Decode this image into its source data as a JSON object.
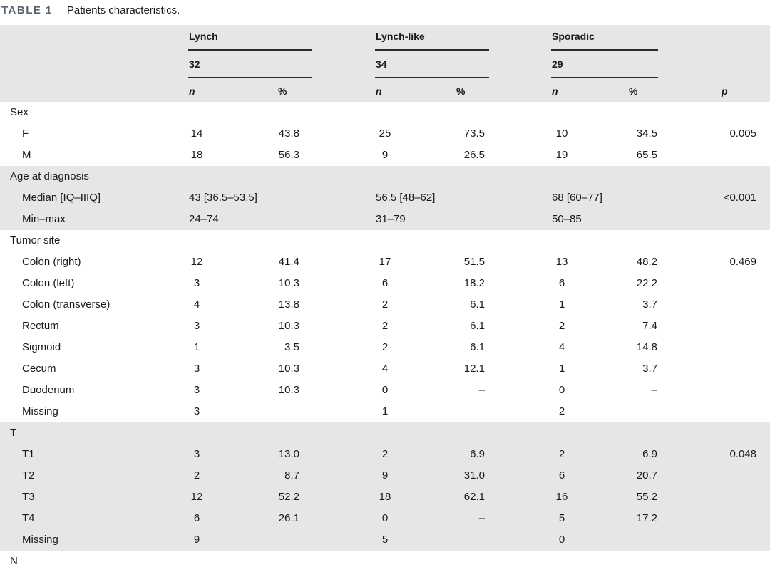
{
  "caption": {
    "label": "TABLE 1",
    "text": "Patients characteristics."
  },
  "header": {
    "groups": [
      {
        "name": "Lynch",
        "count": "32"
      },
      {
        "name": "Lynch-like",
        "count": "34"
      },
      {
        "name": "Sporadic",
        "count": "29"
      }
    ],
    "n_label": "n",
    "pct_label": "%",
    "p_label": "p"
  },
  "rows": [
    {
      "label": "Sex",
      "sub": false,
      "shade": false
    },
    {
      "label": "F",
      "sub": true,
      "shade": false,
      "n1": "14",
      "p1": "43.8",
      "n2": "25",
      "p2": "73.5",
      "n3": "10",
      "p3": "34.5",
      "pv": "0.005"
    },
    {
      "label": "M",
      "sub": true,
      "shade": false,
      "n1": "18",
      "p1": "56.3",
      "n2": "9",
      "p2": "26.5",
      "n3": "19",
      "p3": "65.5",
      "pv": ""
    },
    {
      "label": "Age at diagnosis",
      "sub": false,
      "shade": true
    },
    {
      "label": "Median [IQ–IIIQ]",
      "sub": true,
      "shade": true,
      "s1": "43 [36.5–53.5]",
      "s2": "56.5 [48–62]",
      "s3": "68 [60–77]",
      "pv": "<0.001"
    },
    {
      "label": "Min–max",
      "sub": true,
      "shade": true,
      "s1": "24–74",
      "s2": "31–79",
      "s3": "50–85",
      "pv": ""
    },
    {
      "label": "Tumor site",
      "sub": false,
      "shade": false
    },
    {
      "label": "Colon (right)",
      "sub": true,
      "shade": false,
      "n1": "12",
      "p1": "41.4",
      "n2": "17",
      "p2": "51.5",
      "n3": "13",
      "p3": "48.2",
      "pv": "0.469"
    },
    {
      "label": "Colon (left)",
      "sub": true,
      "shade": false,
      "n1": "3",
      "p1": "10.3",
      "n2": "6",
      "p2": "18.2",
      "n3": "6",
      "p3": "22.2",
      "pv": ""
    },
    {
      "label": "Colon (transverse)",
      "sub": true,
      "shade": false,
      "n1": "4",
      "p1": "13.8",
      "n2": "2",
      "p2": "6.1",
      "n3": "1",
      "p3": "3.7",
      "pv": ""
    },
    {
      "label": "Rectum",
      "sub": true,
      "shade": false,
      "n1": "3",
      "p1": "10.3",
      "n2": "2",
      "p2": "6.1",
      "n3": "2",
      "p3": "7.4",
      "pv": ""
    },
    {
      "label": "Sigmoid",
      "sub": true,
      "shade": false,
      "n1": "1",
      "p1": "3.5",
      "n2": "2",
      "p2": "6.1",
      "n3": "4",
      "p3": "14.8",
      "pv": ""
    },
    {
      "label": "Cecum",
      "sub": true,
      "shade": false,
      "n1": "3",
      "p1": "10.3",
      "n2": "4",
      "p2": "12.1",
      "n3": "1",
      "p3": "3.7",
      "pv": ""
    },
    {
      "label": "Duodenum",
      "sub": true,
      "shade": false,
      "n1": "3",
      "p1": "10.3",
      "n2": "0",
      "p2": "–",
      "n3": "0",
      "p3": "–",
      "pv": ""
    },
    {
      "label": "Missing",
      "sub": true,
      "shade": false,
      "n1": "3",
      "p1": "",
      "n2": "1",
      "p2": "",
      "n3": "2",
      "p3": "",
      "pv": ""
    },
    {
      "label": "T",
      "sub": false,
      "shade": true
    },
    {
      "label": "T1",
      "sub": true,
      "shade": true,
      "n1": "3",
      "p1": "13.0",
      "n2": "2",
      "p2": "6.9",
      "n3": "2",
      "p3": "6.9",
      "pv": "0.048"
    },
    {
      "label": "T2",
      "sub": true,
      "shade": true,
      "n1": "2",
      "p1": "8.7",
      "n2": "9",
      "p2": "31.0",
      "n3": "6",
      "p3": "20.7",
      "pv": ""
    },
    {
      "label": "T3",
      "sub": true,
      "shade": true,
      "n1": "12",
      "p1": "52.2",
      "n2": "18",
      "p2": "62.1",
      "n3": "16",
      "p3": "55.2",
      "pv": ""
    },
    {
      "label": "T4",
      "sub": true,
      "shade": true,
      "n1": "6",
      "p1": "26.1",
      "n2": "0",
      "p2": "–",
      "n3": "5",
      "p3": "17.2",
      "pv": ""
    },
    {
      "label": "Missing",
      "sub": true,
      "shade": true,
      "n1": "9",
      "p1": "",
      "n2": "5",
      "p2": "",
      "n3": "0",
      "p3": "",
      "pv": ""
    },
    {
      "label": "N",
      "sub": false,
      "shade": false
    }
  ]
}
